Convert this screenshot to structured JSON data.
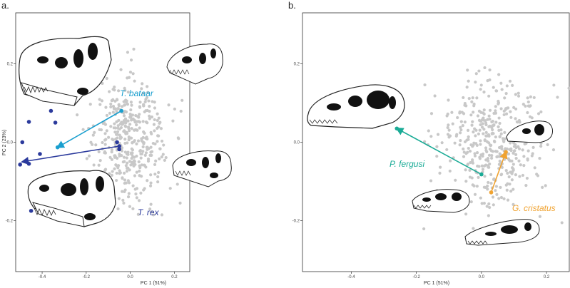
{
  "panels": [
    {
      "panel_label": "a.",
      "xlabel": "PC 1 (51%)",
      "ylabel": "PC 2 (23%)",
      "taxa": [
        {
          "name": "T. bataar",
          "color": "#1a9fcf"
        },
        {
          "name": "T. rex",
          "color": "#2b3a9c"
        }
      ]
    },
    {
      "panel_label": "b.",
      "xlabel": "PC 1 (51%)",
      "ylabel": "",
      "taxa": [
        {
          "name": "P. fergusi",
          "color": "#1aab96"
        },
        {
          "name": "G. cristatus",
          "color": "#f0a331"
        }
      ]
    }
  ],
  "chart_data": [
    {
      "type": "scatter",
      "xlabel": "PC 1 (51%)",
      "ylabel": "PC 2 (23%)",
      "xlim": [
        -0.52,
        0.27
      ],
      "ylim": [
        -0.33,
        0.33
      ],
      "xticks": [
        -0.4,
        -0.2,
        0.0,
        0.2
      ],
      "xtick_labels": [
        "-0.4",
        "-0.2",
        "0.0",
        "0.2"
      ],
      "yticks": [
        -0.2,
        0.0,
        0.2
      ],
      "ytick_labels": [
        "-0.2",
        "0.0",
        "0.2"
      ],
      "background_color": "#c8c8c8",
      "series": [
        {
          "name": "T. bataar",
          "color": "#1a9fcf",
          "points": [
            [
              -0.04,
              0.08
            ],
            [
              -0.33,
              -0.013
            ]
          ],
          "arrow": {
            "from": [
              -0.04,
              0.08
            ],
            "to": [
              -0.33,
              -0.013
            ]
          }
        },
        {
          "name": "T. rex",
          "color": "#2b3a9c",
          "points": [
            [
              -0.05,
              -0.01
            ],
            [
              -0.46,
              -0.055
            ],
            [
              -0.49,
              0.0
            ],
            [
              -0.34,
              0.05
            ],
            [
              -0.41,
              -0.03
            ],
            [
              -0.5,
              -0.057
            ],
            [
              -0.46,
              0.052
            ],
            [
              -0.36,
              0.08
            ],
            [
              -0.45,
              -0.175
            ],
            [
              -0.06,
              0.0
            ],
            [
              -0.05,
              -0.018
            ]
          ],
          "arrow": {
            "from": [
              -0.05,
              -0.01
            ],
            "to": [
              -0.49,
              -0.05
            ]
          }
        }
      ]
    },
    {
      "type": "scatter",
      "xlabel": "PC 1 (51%)",
      "ylabel": "",
      "xlim": [
        -0.55,
        0.27
      ],
      "ylim": [
        -0.33,
        0.33
      ],
      "xticks": [
        -0.4,
        -0.2,
        0.0,
        0.2
      ],
      "xtick_labels": [
        "-0.4",
        "-0.2",
        "0.0",
        "0.2"
      ],
      "yticks": [
        -0.2,
        0.0,
        0.2
      ],
      "ytick_labels": [
        "-0.2",
        "0.0",
        "0.2"
      ],
      "background_color": "#c8c8c8",
      "series": [
        {
          "name": "P. fergusi",
          "color": "#1aab96",
          "points": [
            [
              0.0,
              -0.082
            ],
            [
              -0.26,
              0.035
            ]
          ],
          "arrow": {
            "from": [
              0.0,
              -0.082
            ],
            "to": [
              -0.26,
              0.035
            ]
          }
        },
        {
          "name": "G. cristatus",
          "color": "#f0a331",
          "points": [
            [
              0.03,
              -0.128
            ],
            [
              0.075,
              -0.025
            ]
          ],
          "arrow": {
            "from": [
              0.03,
              -0.128
            ],
            "to": [
              0.075,
              -0.025
            ]
          }
        }
      ]
    }
  ]
}
